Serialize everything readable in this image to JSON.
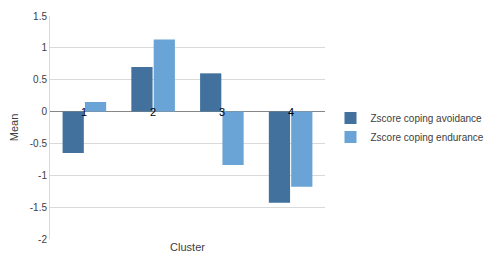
{
  "chart_data": {
    "type": "bar",
    "x_label": "Cluster",
    "y_label": "Mean",
    "categories": [
      "1",
      "2",
      "3",
      "4"
    ],
    "series": [
      {
        "name": "Zscore coping avoidance",
        "color": "#41719c",
        "values": [
          -0.65,
          0.7,
          0.6,
          -1.43
        ]
      },
      {
        "name": "Zscore coping endurance",
        "color": "#6aa4d6",
        "values": [
          0.15,
          1.13,
          -0.84,
          -1.18
        ]
      }
    ],
    "ylim": [
      -2,
      1.5
    ],
    "yticks": [
      -2,
      -1.5,
      -1,
      -0.5,
      0,
      0.5,
      1,
      1.5
    ],
    "grid": true,
    "legend": "right"
  }
}
